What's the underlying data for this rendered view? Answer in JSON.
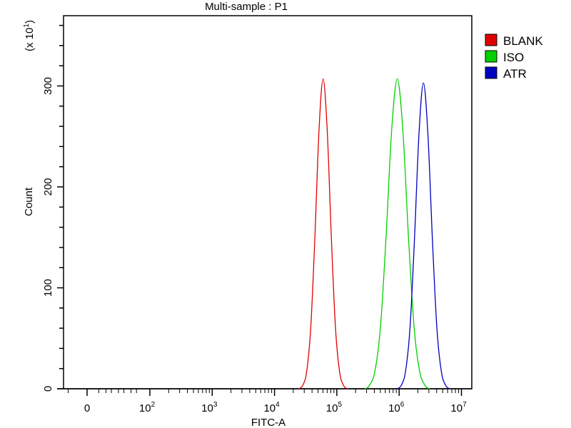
{
  "chart_data": {
    "type": "line",
    "title": "Multi-sample : P1",
    "xlabel": "FITC-A",
    "ylabel": "Count",
    "y_multiplier_label": "(x 10",
    "y_multiplier_exp": "1",
    "x_scale": "biexponential (log above 10^2)",
    "x_tick_labels": [
      {
        "base": "0",
        "exp": "",
        "value": 0
      },
      {
        "base": "10",
        "exp": "2",
        "value": 100
      },
      {
        "base": "10",
        "exp": "3",
        "value": 1000
      },
      {
        "base": "10",
        "exp": "4",
        "value": 10000
      },
      {
        "base": "10",
        "exp": "5",
        "value": 100000
      },
      {
        "base": "10",
        "exp": "6",
        "value": 1000000
      },
      {
        "base": "10",
        "exp": "7",
        "value": 10000000
      }
    ],
    "y_ticks": [
      0,
      100,
      200,
      300
    ],
    "ylim": [
      0,
      370
    ],
    "grid": false,
    "legend_position": "right",
    "series": [
      {
        "name": "BLANK",
        "color": "#e00000",
        "x": [
          28180,
          32810,
          38190,
          44460,
          51760,
          60260,
          70150,
          81660,
          95060,
          110700,
          128800
        ],
        "y": [
          3,
          17,
          61,
          150,
          256,
          307,
          256,
          150,
          61,
          17,
          3
        ]
      },
      {
        "name": "ISO",
        "color": "#00d000",
        "x": [
          331100,
          407400,
          501200,
          616600,
          758600,
          933300,
          1148000,
          1413000,
          1738000,
          2138000,
          2630000
        ],
        "y": [
          3,
          17,
          61,
          150,
          256,
          307,
          256,
          150,
          61,
          17,
          3
        ]
      },
      {
        "name": "ATR",
        "color": "#0000c0",
        "x": [
          1072000,
          1265000,
          1493000,
          1762000,
          2080000,
          2455000,
          2897000,
          3420000,
          4036000,
          4764000,
          5623000
        ],
        "y": [
          3,
          17,
          60,
          148,
          252,
          303,
          252,
          148,
          60,
          17,
          3
        ]
      }
    ]
  }
}
